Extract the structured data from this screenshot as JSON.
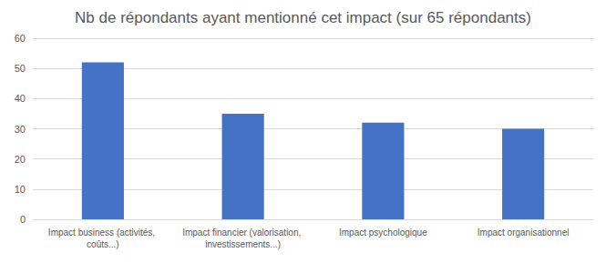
{
  "chart_data": {
    "type": "bar",
    "title": "Nb de répondants ayant mentionné cet impact (sur 65 répondants)",
    "categories": [
      "Impact business (activités, coûts...)",
      "Impact financier (valorisation, investissements...)",
      "Impact psychologique",
      "Impact organisationnel"
    ],
    "values": [
      52,
      35,
      32,
      30
    ],
    "color": "#4472c4",
    "ylim": [
      0,
      60
    ],
    "yticks": [
      0,
      10,
      20,
      30,
      40,
      50,
      60
    ],
    "grid": true
  }
}
